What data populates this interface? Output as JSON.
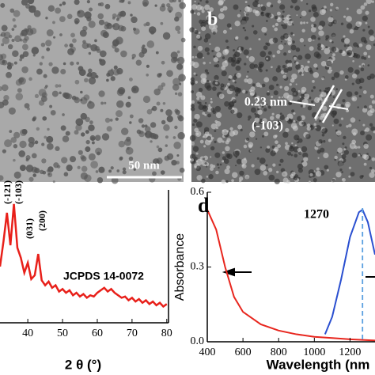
{
  "panels": {
    "a": {
      "scale_bar": "50 nm"
    },
    "b": {
      "label": "b",
      "spacing": "0.23 nm",
      "plane": "(-103)"
    }
  },
  "chart_data": [
    {
      "type": "line",
      "xlabel": "2 θ (°)",
      "annotations": [
        "(-121)",
        "(-103)",
        "(031)",
        "(200)"
      ],
      "reference": "JCPDS 14-0072",
      "xlim": [
        32,
        80.5
      ],
      "ylim": [
        0,
        100
      ],
      "xticks": [
        40,
        50,
        60,
        70,
        80
      ],
      "series": [
        {
          "color": "#e8201a",
          "x": [
            32,
            33,
            34,
            35,
            36,
            37,
            38,
            39,
            40,
            41,
            42,
            43,
            44,
            45,
            46,
            47,
            48,
            49,
            50,
            51,
            52,
            53,
            54,
            55,
            56,
            57,
            58,
            59,
            60,
            61,
            62,
            63,
            64,
            65,
            66,
            67,
            68,
            69,
            70,
            71,
            72,
            73,
            74,
            75,
            76,
            77,
            78,
            79,
            80
          ],
          "values": [
            45,
            65,
            88,
            62,
            95,
            60,
            52,
            40,
            48,
            35,
            38,
            55,
            34,
            30,
            33,
            28,
            30,
            25,
            27,
            24,
            26,
            22,
            24,
            21,
            23,
            20,
            22,
            21,
            24,
            26,
            28,
            25,
            27,
            24,
            22,
            20,
            21,
            18,
            20,
            17,
            19,
            16,
            18,
            15,
            17,
            14,
            16,
            13,
            15
          ]
        }
      ]
    },
    {
      "type": "line",
      "label": "d",
      "xlabel": "Wavelength (nm",
      "ylabel": "Absorbance",
      "peak_marker": 1270,
      "xlim": [
        400,
        1340
      ],
      "ylim": [
        0,
        0.6
      ],
      "xticks": [
        400,
        600,
        800,
        1000,
        1200
      ],
      "yticks": [
        {
          "value": 0,
          "label": "0.0"
        },
        0.3,
        0.6
      ],
      "series": [
        {
          "color": "#e8261e",
          "x": [
            400,
            450,
            500,
            550,
            600,
            700,
            800,
            900,
            1000,
            1100,
            1200,
            1340
          ],
          "values": [
            0.53,
            0.45,
            0.3,
            0.18,
            0.12,
            0.07,
            0.045,
            0.03,
            0.02,
            0.015,
            0.01,
            0.005
          ]
        },
        {
          "color": "#2a4fd0",
          "x": [
            1060,
            1100,
            1150,
            1200,
            1250,
            1270,
            1300,
            1340
          ],
          "values": [
            0.03,
            0.1,
            0.25,
            0.42,
            0.52,
            0.53,
            0.48,
            0.35
          ]
        }
      ]
    }
  ]
}
